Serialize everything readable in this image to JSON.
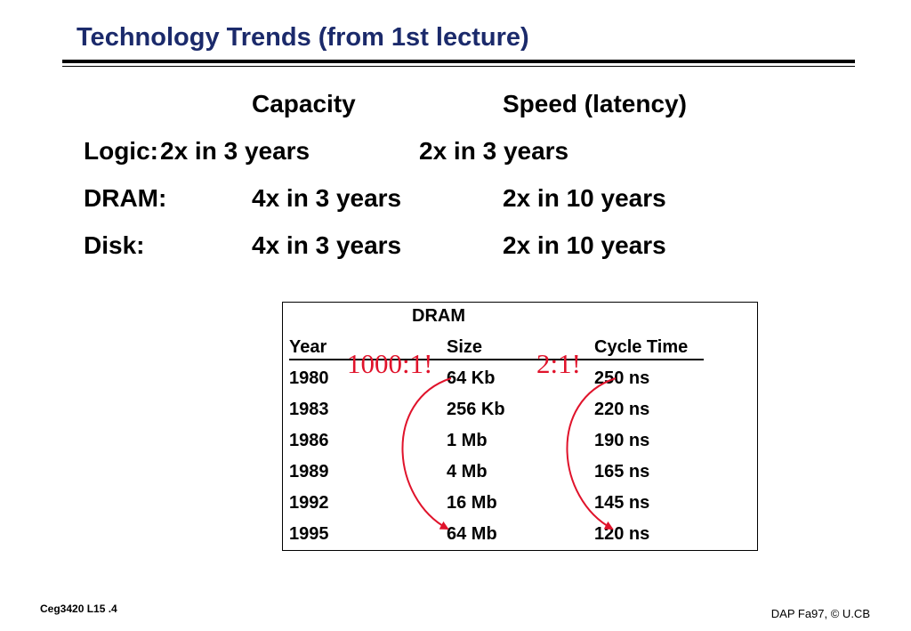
{
  "title": "Technology Trends (from 1st lecture)",
  "trends": {
    "headers": {
      "capacity": "Capacity",
      "speed": "Speed (latency)"
    },
    "logic": {
      "label": "Logic:",
      "capacity": "2x  in  3 years",
      "speed": "2x  in 3 years"
    },
    "dram": {
      "label": "DRAM:",
      "capacity": "4x  in  3 years",
      "speed": "2x  in 10 years"
    },
    "disk": {
      "label": "Disk:",
      "capacity": "4x  in  3 years",
      "speed": "2x  in 10 years"
    }
  },
  "dram_table": {
    "caption": "DRAM",
    "columns": [
      "Year",
      "Size",
      "Cycle Time"
    ],
    "rows": [
      [
        "1980",
        "64 Kb",
        "250 ns"
      ],
      [
        "1983",
        "256 Kb",
        "220 ns"
      ],
      [
        "1986",
        "1 Mb",
        "190 ns"
      ],
      [
        "1989",
        "4 Mb",
        "165 ns"
      ],
      [
        "1992",
        "16 Mb",
        "145 ns"
      ],
      [
        "1995",
        "64 Mb",
        "120 ns"
      ]
    ],
    "annotations": {
      "size_ratio": "1000:1!",
      "time_ratio": "2:1!"
    },
    "annotation_color": "#e0132b"
  },
  "footer": {
    "left": "Ceg3420 L15 .4",
    "right": "DAP Fa97, © U.CB"
  },
  "colors": {
    "title": "#1b2a6b"
  }
}
